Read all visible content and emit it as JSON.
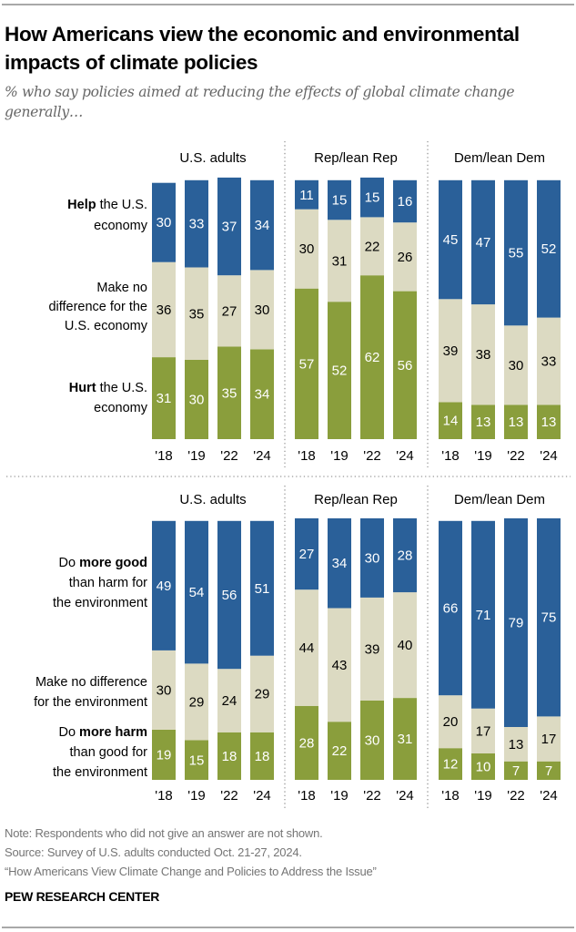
{
  "title": "How Americans view the economic and environmental impacts of climate policies",
  "subtitle": "% who say policies aimed at reducing the effects of global climate change generally…",
  "footer": {
    "note": "Note: Respondents who did not give an answer are not shown.",
    "source": "Source: Survey of U.S. adults conducted Oct. 21-27, 2024.",
    "report": "“How Americans View Climate Change and Policies to Address the Issue”",
    "brand": "PEW RESEARCH CENTER"
  },
  "colors": {
    "positive": "#2a6099",
    "neutral": "#dcdac2",
    "negative": "#8a9e3c"
  },
  "chart_data": [
    {
      "type": "bar",
      "stacked": true,
      "title": "Economy",
      "groups": [
        "U.S. adults",
        "Rep/lean Rep",
        "Dem/lean Dem"
      ],
      "categories": [
        "'18",
        "'19",
        "'22",
        "'24"
      ],
      "series": [
        {
          "name": "Help the U.S. economy",
          "label_bold": "Help",
          "label_rest": " the U.S. economy",
          "role": "positive",
          "values": [
            [
              30,
              33,
              37,
              34
            ],
            [
              11,
              15,
              15,
              16
            ],
            [
              45,
              47,
              55,
              52
            ]
          ]
        },
        {
          "name": "Make no difference for the U.S. economy",
          "label_bold": "",
          "label_rest": "Make no difference for the U.S. economy",
          "role": "neutral",
          "values": [
            [
              36,
              35,
              27,
              30
            ],
            [
              30,
              31,
              22,
              26
            ],
            [
              39,
              38,
              30,
              33
            ]
          ]
        },
        {
          "name": "Hurt the U.S. economy",
          "label_bold": "Hurt",
          "label_rest": " the U.S. economy",
          "role": "negative",
          "values": [
            [
              31,
              30,
              35,
              34
            ],
            [
              57,
              52,
              62,
              56
            ],
            [
              14,
              13,
              13,
              13
            ]
          ]
        }
      ],
      "ylim": [
        0,
        100
      ]
    },
    {
      "type": "bar",
      "stacked": true,
      "title": "Environment",
      "groups": [
        "U.S. adults",
        "Rep/lean Rep",
        "Dem/lean Dem"
      ],
      "categories": [
        "'18",
        "'19",
        "'22",
        "'24"
      ],
      "series": [
        {
          "name": "Do more good than harm for the environment",
          "label_pre": "Do ",
          "label_bold": "more good",
          "label_rest": " than harm for the environment",
          "role": "positive",
          "values": [
            [
              49,
              54,
              56,
              51
            ],
            [
              27,
              34,
              30,
              28
            ],
            [
              66,
              71,
              79,
              75
            ]
          ]
        },
        {
          "name": "Make no difference for the environment",
          "label_pre": "",
          "label_bold": "",
          "label_rest": "Make no difference for the environment",
          "role": "neutral",
          "values": [
            [
              30,
              29,
              24,
              29
            ],
            [
              44,
              43,
              39,
              40
            ],
            [
              20,
              17,
              13,
              17
            ]
          ]
        },
        {
          "name": "Do more harm than good for the environment",
          "label_pre": "Do ",
          "label_bold": "more harm",
          "label_rest": " than good for the environment",
          "role": "negative",
          "values": [
            [
              19,
              15,
              18,
              18
            ],
            [
              28,
              22,
              30,
              31
            ],
            [
              12,
              10,
              7,
              7
            ]
          ]
        }
      ],
      "ylim": [
        0,
        100
      ]
    }
  ]
}
